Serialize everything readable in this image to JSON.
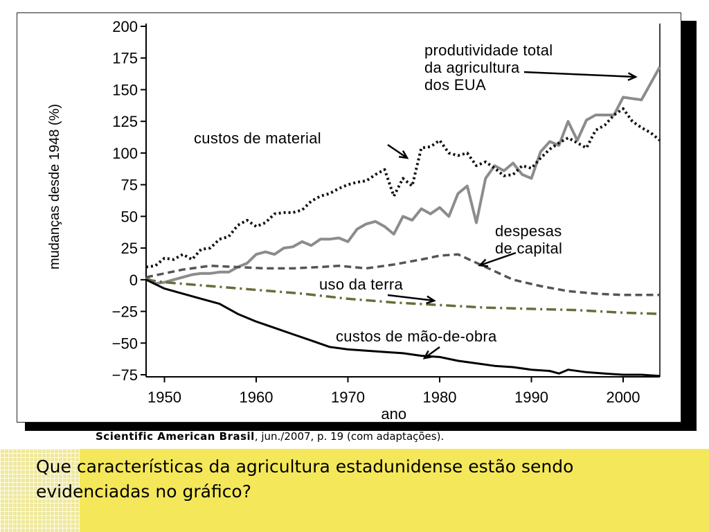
{
  "source": {
    "publication": "Scientific American Brasil",
    "details": ", jun./2007, p. 19 (com adaptações)."
  },
  "question": {
    "text": "Que características da agricultura estadunidense estão sendo evidenciadas no gráfico?"
  },
  "colors": {
    "productivity": "#8c8c8c",
    "material": "#111111",
    "capital": "#555555",
    "land": "#6b6b3c",
    "labor": "#000000",
    "question_bg": "#f4e85a"
  },
  "chart_data": {
    "type": "line",
    "title": "",
    "xlabel": "ano",
    "ylabel": "mudanças desde 1948 (%)",
    "xlim": [
      1948,
      2004
    ],
    "ylim": [
      -75,
      200
    ],
    "x_ticks": [
      1950,
      1960,
      1970,
      1980,
      1990,
      2000
    ],
    "x_tick_labels": [
      "1950",
      "1960",
      "1970",
      "1980",
      "1990",
      "2000"
    ],
    "y_ticks": [
      200,
      175,
      150,
      125,
      100,
      75,
      50,
      25,
      0,
      -25,
      -50,
      -75
    ],
    "y_tick_labels": [
      "200",
      "175",
      "150",
      "125",
      "100",
      "75",
      "50",
      "25",
      "0",
      "−25",
      "−50",
      "−75"
    ],
    "grid": false,
    "series": [
      {
        "name": "produtividade total da agricultura dos EUA",
        "key": "productivity",
        "style": "solid-thick",
        "x": [
          1948,
          1949,
          1950,
          1951,
          1952,
          1953,
          1954,
          1955,
          1956,
          1957,
          1958,
          1959,
          1960,
          1961,
          1962,
          1963,
          1964,
          1965,
          1966,
          1967,
          1968,
          1969,
          1970,
          1971,
          1972,
          1973,
          1974,
          1975,
          1976,
          1977,
          1978,
          1979,
          1980,
          1981,
          1982,
          1983,
          1984,
          1985,
          1986,
          1987,
          1988,
          1989,
          1990,
          1991,
          1992,
          1993,
          1994,
          1995,
          1996,
          1997,
          1998,
          1999,
          2000,
          2001,
          2002,
          2003,
          2004
        ],
        "y": [
          2,
          -3,
          -2,
          0,
          2,
          4,
          5,
          5,
          6,
          6,
          10,
          13,
          20,
          22,
          20,
          25,
          26,
          30,
          27,
          32,
          32,
          33,
          30,
          40,
          44,
          46,
          42,
          36,
          50,
          47,
          56,
          52,
          57,
          50,
          68,
          74,
          45,
          80,
          90,
          86,
          92,
          83,
          80,
          101,
          109,
          106,
          125,
          110,
          126,
          130,
          130,
          130,
          144,
          143,
          142,
          155,
          168
        ]
      },
      {
        "name": "custos de material",
        "key": "material",
        "style": "dotted",
        "x": [
          1948,
          1949,
          1950,
          1951,
          1952,
          1953,
          1954,
          1955,
          1956,
          1957,
          1958,
          1959,
          1960,
          1961,
          1962,
          1963,
          1964,
          1965,
          1966,
          1967,
          1968,
          1969,
          1970,
          1971,
          1972,
          1973,
          1974,
          1975,
          1976,
          1977,
          1978,
          1979,
          1980,
          1981,
          1982,
          1983,
          1984,
          1985,
          1986,
          1987,
          1988,
          1989,
          1990,
          1991,
          1992,
          1993,
          1994,
          1995,
          1996,
          1997,
          1998,
          1999,
          2000,
          2001,
          2002,
          2003,
          2004
        ],
        "y": [
          10,
          11,
          17,
          16,
          20,
          16,
          24,
          25,
          32,
          34,
          43,
          47,
          42,
          45,
          52,
          53,
          53,
          55,
          62,
          66,
          68,
          72,
          75,
          77,
          78,
          83,
          87,
          66,
          80,
          74,
          104,
          105,
          110,
          100,
          98,
          100,
          90,
          93,
          88,
          82,
          83,
          90,
          88,
          96,
          103,
          108,
          112,
          108,
          104,
          118,
          122,
          130,
          135,
          125,
          120,
          116,
          110
        ]
      },
      {
        "name": "despesas de capital",
        "key": "capital",
        "style": "dashed",
        "x": [
          1948,
          1950,
          1952,
          1955,
          1958,
          1961,
          1964,
          1967,
          1969,
          1972,
          1975,
          1978,
          1980,
          1982,
          1985,
          1988,
          1991,
          1994,
          1997,
          2000,
          2004
        ],
        "y": [
          2,
          5,
          8,
          11,
          10,
          9,
          9,
          10,
          11,
          9,
          12,
          16,
          19,
          20,
          10,
          0,
          -5,
          -9,
          -11,
          -12,
          -12
        ]
      },
      {
        "name": "uso da terra",
        "key": "land",
        "style": "dash-dot",
        "x": [
          1948,
          1950,
          1955,
          1960,
          1965,
          1970,
          1975,
          1980,
          1985,
          1990,
          1995,
          2000,
          2004
        ],
        "y": [
          0,
          -2,
          -5,
          -8,
          -11,
          -15,
          -18,
          -20,
          -22,
          -23,
          -24,
          -26,
          -27
        ]
      },
      {
        "name": "custos de mão-de-obra",
        "key": "labor",
        "style": "solid",
        "x": [
          1948,
          1950,
          1952,
          1954,
          1956,
          1958,
          1960,
          1962,
          1964,
          1966,
          1968,
          1970,
          1972,
          1974,
          1976,
          1978,
          1980,
          1982,
          1984,
          1986,
          1988,
          1990,
          1992,
          1993,
          1994,
          1996,
          1998,
          2000,
          2002,
          2004
        ],
        "y": [
          0,
          -7,
          -11,
          -15,
          -19,
          -27,
          -33,
          -38,
          -43,
          -48,
          -53,
          -55,
          -56,
          -57,
          -58,
          -60,
          -61,
          -64,
          -66,
          -68,
          -69,
          -71,
          -72,
          -74,
          -71,
          -73,
          -74,
          -75,
          -75,
          -76
        ]
      }
    ],
    "annotations": [
      {
        "series": "productivity",
        "lines": [
          "produtividade total",
          "da agricultura",
          "dos EUA"
        ]
      },
      {
        "series": "material",
        "lines": [
          "custos de material"
        ]
      },
      {
        "series": "capital",
        "lines": [
          "despesas",
          "de capital"
        ]
      },
      {
        "series": "land",
        "lines": [
          "uso da terra"
        ]
      },
      {
        "series": "labor",
        "lines": [
          "custos de mão-de-obra"
        ]
      }
    ]
  }
}
